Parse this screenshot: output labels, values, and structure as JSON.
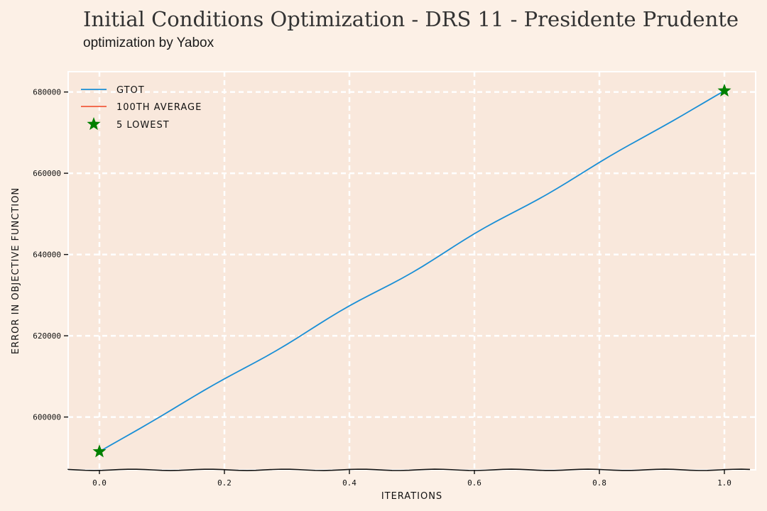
{
  "header": {
    "title": "Initial Conditions Optimization - DRS 11 - Presidente Prudente",
    "subtitle": "optimization by Yabox"
  },
  "colors": {
    "background": "#fcf0e6",
    "plot_background": "#f9e8dc",
    "gtot": "#1a8fd6",
    "average": "#f05a3c",
    "lowest": "#008000"
  },
  "chart_data": {
    "type": "line",
    "xlabel": "ITERATIONS",
    "ylabel": "ERROR IN OBJECTIVE FUNCTION",
    "xlim": [
      -0.05,
      1.05
    ],
    "ylim": [
      587000,
      685000
    ],
    "x_ticks": [
      0.0,
      0.2,
      0.4,
      0.6,
      0.8,
      1.0
    ],
    "x_tick_labels": [
      "0.0",
      "0.2",
      "0.4",
      "0.6",
      "0.8",
      "1.0"
    ],
    "y_ticks": [
      600000,
      620000,
      640000,
      660000,
      680000
    ],
    "y_tick_labels": [
      "600000",
      "620000",
      "640000",
      "660000",
      "680000"
    ],
    "grid": true,
    "legend_position": "top-left",
    "series": [
      {
        "name": "GTOT",
        "kind": "line",
        "x": [
          0.0,
          1.0
        ],
        "values": [
          591500,
          680300
        ]
      },
      {
        "name": "100TH AVERAGE",
        "kind": "line",
        "x": [
          0.0,
          1.0
        ],
        "values": [
          591500,
          680300
        ]
      },
      {
        "name": "5 LOWEST",
        "kind": "scatter",
        "x": [
          0.0,
          1.0
        ],
        "values": [
          591500,
          680300
        ]
      }
    ]
  }
}
